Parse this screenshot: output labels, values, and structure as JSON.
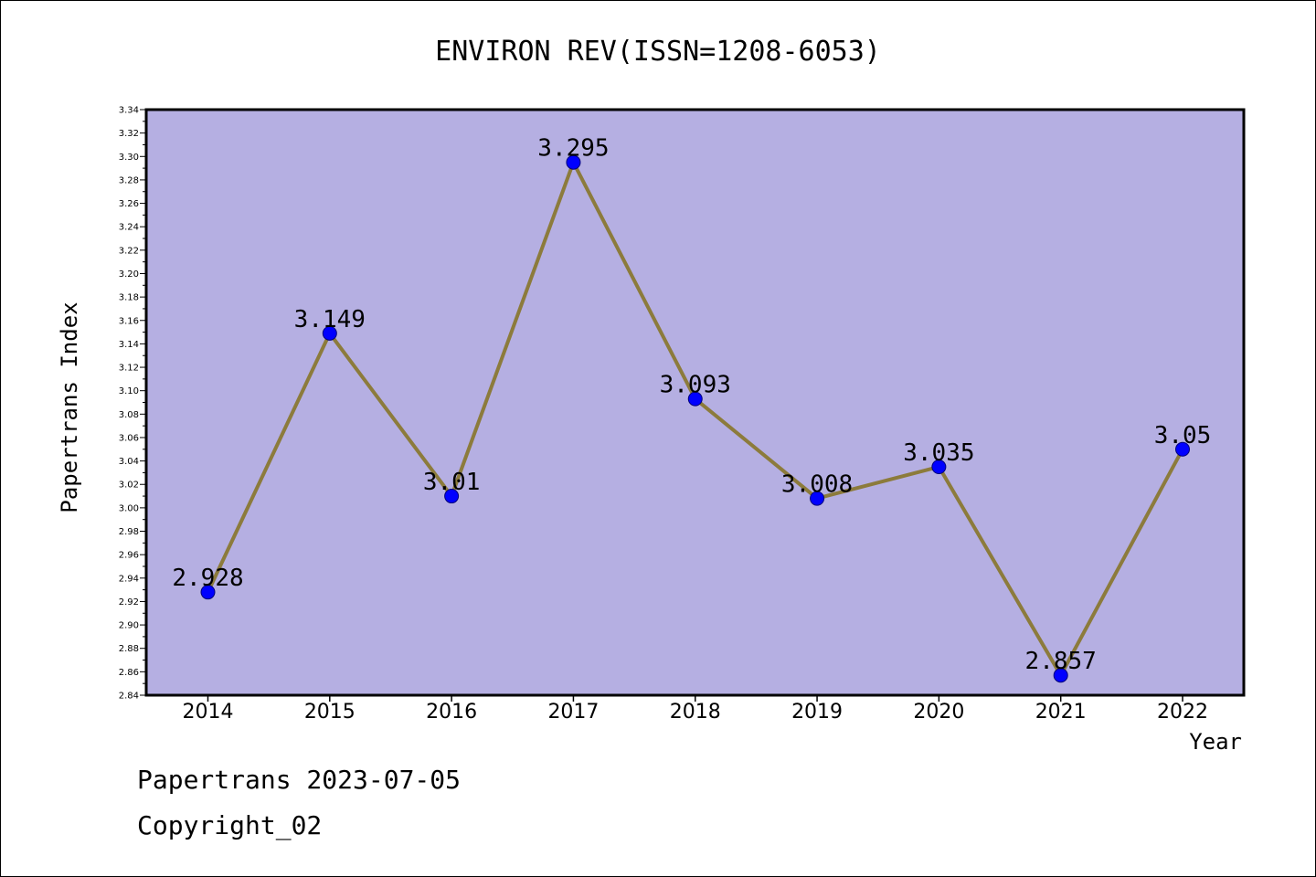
{
  "chart_data": {
    "type": "line",
    "title": "ENVIRON REV(ISSN=1208-6053)",
    "xlabel": "Year",
    "ylabel": "Papertrans Index",
    "categories": [
      "2014",
      "2015",
      "2016",
      "2017",
      "2018",
      "2019",
      "2020",
      "2021",
      "2022"
    ],
    "values": [
      2.928,
      3.149,
      3.01,
      3.295,
      3.093,
      3.008,
      3.035,
      2.857,
      3.05
    ],
    "value_labels": [
      "2.928",
      "3.149",
      "3.01",
      "3.295",
      "3.093",
      "3.008",
      "3.035",
      "2.857",
      "3.05"
    ],
    "ylim": [
      2.84,
      3.34
    ],
    "ytick_step": 0.02,
    "ytick_minor_step": 0.01,
    "grid": false,
    "legend": "none",
    "colors": {
      "plot_background": "#b5afe2",
      "line": "#8c7b3c",
      "marker": "#0000ff",
      "axis": "#000000"
    }
  },
  "footer": {
    "line1": "Papertrans 2023-07-05",
    "line2": "Copyright_02"
  }
}
